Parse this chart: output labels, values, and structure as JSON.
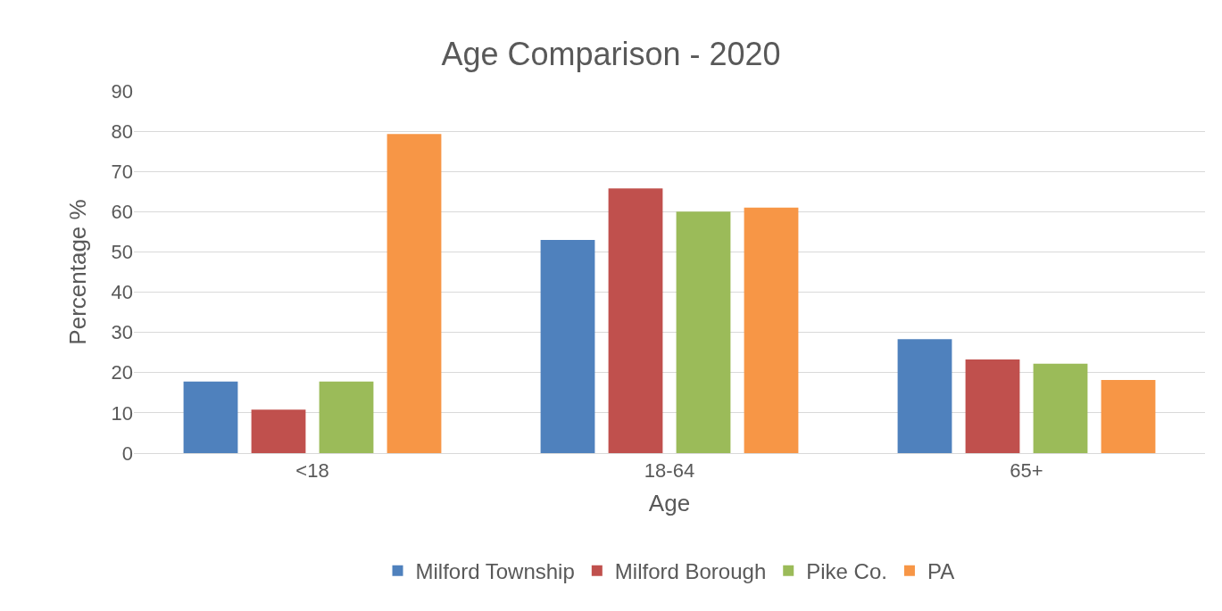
{
  "chart_data": {
    "type": "bar",
    "title": "Age Comparison - 2020",
    "xlabel": "Age",
    "ylabel": "Percentage %",
    "categories": [
      "<18",
      "18-64",
      "65+"
    ],
    "series": [
      {
        "name": "Milford Township",
        "color": "#4f81bd",
        "values": [
          17.8,
          53,
          28.3
        ]
      },
      {
        "name": "Milford Borough",
        "color": "#c0504d",
        "values": [
          10.8,
          65.8,
          23.3
        ]
      },
      {
        "name": "Pike Co.",
        "color": "#9bbb59",
        "values": [
          17.8,
          60,
          22.2
        ]
      },
      {
        "name": "PA",
        "color": "#f79646",
        "values": [
          79.3,
          61,
          18.2
        ]
      }
    ],
    "ylim": [
      0,
      90
    ],
    "yticks": [
      0,
      10,
      20,
      30,
      40,
      50,
      60,
      70,
      80,
      90
    ],
    "grid": "y",
    "legend": "bottom"
  }
}
